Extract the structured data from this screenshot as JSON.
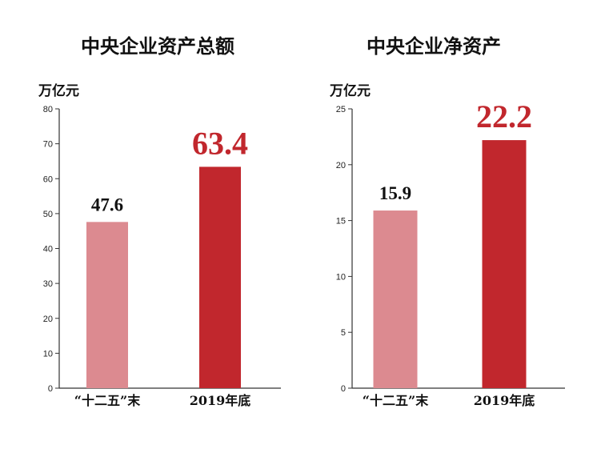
{
  "chart_data": [
    {
      "type": "bar",
      "title": "中央企业资产总额",
      "ylabel": "万亿元",
      "categories": [
        "“十二五”末",
        "2019年底"
      ],
      "values": [
        47.6,
        63.4
      ],
      "value_labels": [
        "47.6",
        "63.4"
      ],
      "ylim": [
        0,
        80
      ],
      "yticks": [
        0,
        10,
        20,
        30,
        40,
        50,
        60,
        70,
        80
      ],
      "ytick_labels": [
        "0",
        "10",
        "20",
        "30",
        "40",
        "50",
        "60",
        "70",
        "80"
      ],
      "grid": false,
      "bar_colors": [
        "#dc8a90",
        "#c1272d"
      ],
      "value_label_colors": [
        "#111111",
        "#c1272d"
      ]
    },
    {
      "type": "bar",
      "title": "中央企业净资产",
      "ylabel": "万亿元",
      "categories": [
        "“十二五”末",
        "2019年底"
      ],
      "values": [
        15.9,
        22.2
      ],
      "value_labels": [
        "15.9",
        "22.2"
      ],
      "ylim": [
        0,
        25
      ],
      "yticks": [
        0,
        5,
        10,
        15,
        20,
        25
      ],
      "ytick_labels": [
        "0",
        "5",
        "10",
        "15",
        "20",
        "25"
      ],
      "grid": false,
      "bar_colors": [
        "#dc8a90",
        "#c1272d"
      ],
      "value_label_colors": [
        "#111111",
        "#c1272d"
      ]
    }
  ]
}
